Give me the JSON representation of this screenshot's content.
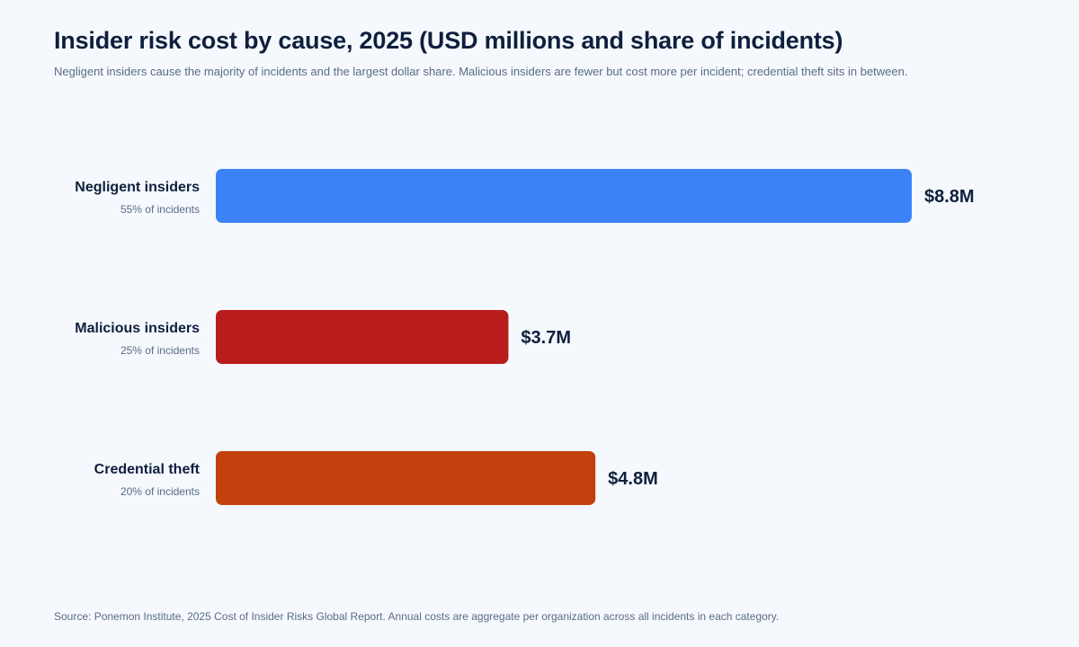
{
  "title": "Insider risk cost by cause, 2025 (USD millions and share of incidents)",
  "subtitle": "Negligent insiders cause the majority of incidents and the largest dollar share. Malicious insiders are fewer but cost more per incident; credential theft sits in between.",
  "source": "Source: Ponemon Institute, 2025 Cost of Insider Risks Global Report. Annual costs are aggregate per organization across all incidents in each category.",
  "chart_data": {
    "type": "bar",
    "orientation": "horizontal",
    "xlim": [
      0,
      8.8
    ],
    "grid": false,
    "legend": "none",
    "categories": [
      "Negligent insiders",
      "Malicious insiders",
      "Credential theft"
    ],
    "values": [
      8.8,
      3.7,
      4.8
    ],
    "value_labels": [
      "$8.8M",
      "$3.7M",
      "$4.8M"
    ],
    "sublabels": [
      "55% of incidents",
      "25% of incidents",
      "20% of incidents"
    ],
    "colors": [
      "#3b82f6",
      "#b91c1c",
      "#c2410c"
    ]
  }
}
